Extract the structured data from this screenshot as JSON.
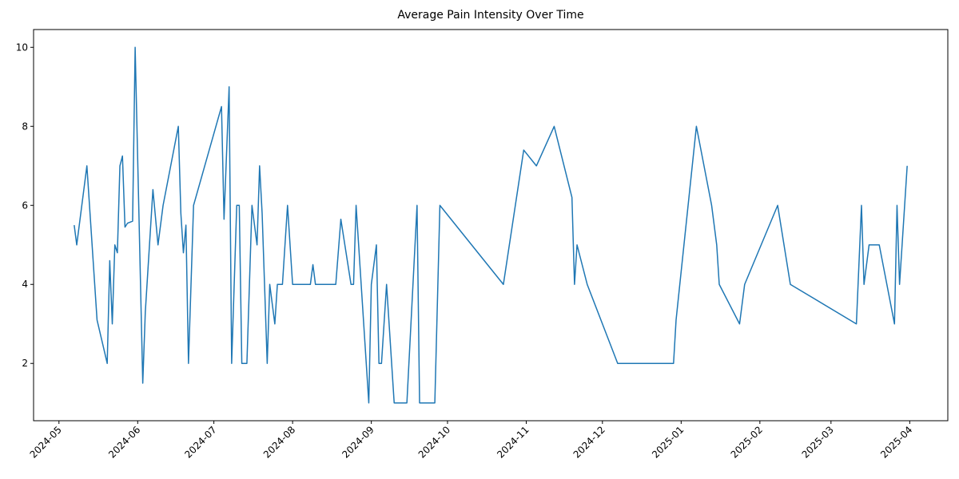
{
  "chart_data": {
    "type": "line",
    "title": "Average Pain Intensity Over Time",
    "color": "#1f77b4",
    "x": [
      "2024-05-07",
      "2024-05-08",
      "2024-05-12",
      "2024-05-16",
      "2024-05-20",
      "2024-05-21",
      "2024-05-22",
      "2024-05-23",
      "2024-05-24",
      "2024-05-25",
      "2024-05-26",
      "2024-05-27",
      "2024-05-28",
      "2024-05-30",
      "2024-05-31",
      "2024-06-03",
      "2024-06-04",
      "2024-06-07",
      "2024-06-09",
      "2024-06-11",
      "2024-06-17",
      "2024-06-18",
      "2024-06-19",
      "2024-06-20",
      "2024-06-21",
      "2024-06-23",
      "2024-07-04",
      "2024-07-05",
      "2024-07-07",
      "2024-07-08",
      "2024-07-10",
      "2024-07-11",
      "2024-07-12",
      "2024-07-14",
      "2024-07-16",
      "2024-07-18",
      "2024-07-19",
      "2024-07-20",
      "2024-07-22",
      "2024-07-23",
      "2024-07-25",
      "2024-07-26",
      "2024-07-28",
      "2024-07-30",
      "2024-08-01",
      "2024-08-08",
      "2024-08-09",
      "2024-08-10",
      "2024-08-18",
      "2024-08-20",
      "2024-08-24",
      "2024-08-25",
      "2024-08-26",
      "2024-08-31",
      "2024-09-01",
      "2024-09-03",
      "2024-09-04",
      "2024-09-05",
      "2024-09-07",
      "2024-09-10",
      "2024-09-15",
      "2024-09-19",
      "2024-09-20",
      "2024-09-26",
      "2024-09-28",
      "2024-10-23",
      "2024-10-31",
      "2024-11-05",
      "2024-11-12",
      "2024-11-19",
      "2024-11-20",
      "2024-11-21",
      "2024-11-25",
      "2024-12-07",
      "2024-12-29",
      "2024-12-30",
      "2025-01-07",
      "2025-01-13",
      "2025-01-15",
      "2025-01-16",
      "2025-01-24",
      "2025-01-26",
      "2025-02-08",
      "2025-02-13",
      "2025-03-11",
      "2025-03-13",
      "2025-03-14",
      "2025-03-16",
      "2025-03-20",
      "2025-03-26",
      "2025-03-27",
      "2025-03-28",
      "2025-03-30",
      "2025-03-31"
    ],
    "values": [
      5.5,
      5.0,
      7.0,
      3.1,
      2.0,
      4.6,
      3.0,
      5.0,
      4.8,
      7.0,
      7.25,
      5.45,
      5.55,
      5.6,
      10,
      1.5,
      3.3,
      6.4,
      5.0,
      6.0,
      8.0,
      5.8,
      4.8,
      5.5,
      2.0,
      6.0,
      8.5,
      5.65,
      9.0,
      2.0,
      6.0,
      6.0,
      2.0,
      2.0,
      6.0,
      5.0,
      7.0,
      5.8,
      2.0,
      4.0,
      3.0,
      4.0,
      4.0,
      6.0,
      4.0,
      4.0,
      4.5,
      4.0,
      4.0,
      5.65,
      4.0,
      4.0,
      6.0,
      1.0,
      4.0,
      5.0,
      2.0,
      2.0,
      4.0,
      1.0,
      1.0,
      6.0,
      1.0,
      1.0,
      6.0,
      4.0,
      7.4,
      7.0,
      8.0,
      6.2,
      4.0,
      5.0,
      4.0,
      2.0,
      2.0,
      3.1,
      8.0,
      6.0,
      5.0,
      4.0,
      3.0,
      4.0,
      6.0,
      4.0,
      3.0,
      6.0,
      4.0,
      5.0,
      5.0,
      3.0,
      6.0,
      4.0,
      6.0,
      7.0
    ],
    "xlim": [
      "2024-04-21",
      "2025-04-16"
    ],
    "xticks": [
      {
        "value": "2024-05-01",
        "label": "2024-05"
      },
      {
        "value": "2024-06-01",
        "label": "2024-06"
      },
      {
        "value": "2024-07-01",
        "label": "2024-07"
      },
      {
        "value": "2024-08-01",
        "label": "2024-08"
      },
      {
        "value": "2024-09-01",
        "label": "2024-09"
      },
      {
        "value": "2024-10-01",
        "label": "2024-10"
      },
      {
        "value": "2024-11-01",
        "label": "2024-11"
      },
      {
        "value": "2024-12-01",
        "label": "2024-12"
      },
      {
        "value": "2025-01-01",
        "label": "2025-01"
      },
      {
        "value": "2025-02-01",
        "label": "2025-02"
      },
      {
        "value": "2025-03-01",
        "label": "2025-03"
      },
      {
        "value": "2025-04-01",
        "label": "2025-04"
      }
    ],
    "ylim": [
      0.55,
      10.45
    ],
    "yticks": [
      2,
      4,
      6,
      8,
      10
    ]
  }
}
